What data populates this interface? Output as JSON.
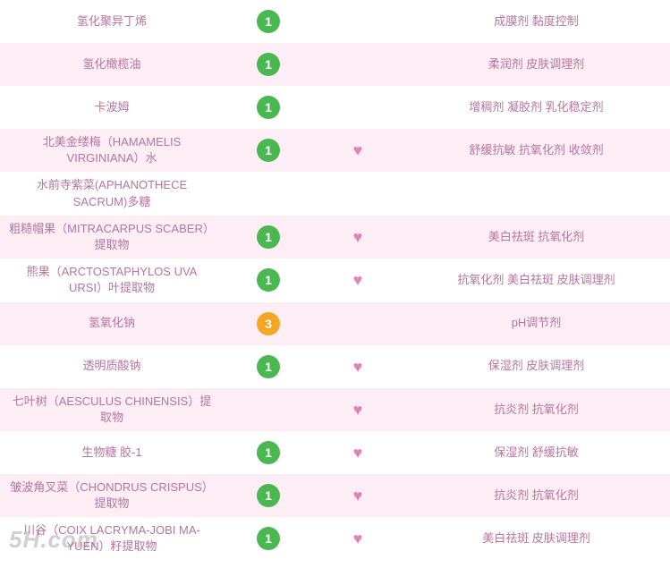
{
  "colors": {
    "row_even_bg": "#fdedf4",
    "row_odd_bg": "#ffffff",
    "text_color": "#b875a0",
    "badge_green": "#4bb750",
    "badge_orange": "#f5a623",
    "heart_color": "#e77fb2",
    "watermark_color": "rgba(120,120,120,0.35)"
  },
  "watermark": "5H.com",
  "rows": [
    {
      "name": "氢化聚异丁烯",
      "badge": "1",
      "badge_color": "#4bb750",
      "heart": false,
      "func": "成膜剂 黏度控制"
    },
    {
      "name": "氢化橄榄油",
      "badge": "1",
      "badge_color": "#4bb750",
      "heart": false,
      "func": "柔润剂 皮肤调理剂"
    },
    {
      "name": "卡波姆",
      "badge": "1",
      "badge_color": "#4bb750",
      "heart": false,
      "func": "增稠剂 凝胶剂 乳化稳定剂"
    },
    {
      "name": "北美金缕梅（HAMAMELIS VIRGINIANA）水",
      "badge": "1",
      "badge_color": "#4bb750",
      "heart": true,
      "func": "舒缓抗敏 抗氧化剂 收敛剂"
    },
    {
      "name": "水前寺紫菜(APHANOTHECE SACRUM)多糖",
      "badge": "",
      "badge_color": "",
      "heart": false,
      "func": ""
    },
    {
      "name": "粗糙帽果（MITRACARPUS SCABER）提取物",
      "badge": "1",
      "badge_color": "#4bb750",
      "heart": true,
      "func": "美白祛斑 抗氧化剂"
    },
    {
      "name": "熊果（ARCTOSTAPHYLOS UVA URSI）叶提取物",
      "badge": "1",
      "badge_color": "#4bb750",
      "heart": true,
      "func": "抗氧化剂 美白祛斑 皮肤调理剂"
    },
    {
      "name": "氢氧化钠",
      "badge": "3",
      "badge_color": "#f5a623",
      "heart": false,
      "func": "pH调节剂"
    },
    {
      "name": "透明质酸钠",
      "badge": "1",
      "badge_color": "#4bb750",
      "heart": true,
      "func": "保湿剂 皮肤调理剂"
    },
    {
      "name": "七叶树（AESCULUS CHINENSIS）提取物",
      "badge": "",
      "badge_color": "",
      "heart": true,
      "func": "抗炎剂 抗氧化剂"
    },
    {
      "name": "生物糖 胶-1",
      "badge": "1",
      "badge_color": "#4bb750",
      "heart": true,
      "func": "保湿剂 舒缓抗敏"
    },
    {
      "name": "皱波角叉菜（CHONDRUS CRISPUS）提取物",
      "badge": "1",
      "badge_color": "#4bb750",
      "heart": true,
      "func": "抗炎剂 抗氧化剂"
    },
    {
      "name": "川谷（COIX LACRYMA-JOBI MA-YUEN）籽提取物",
      "badge": "1",
      "badge_color": "#4bb750",
      "heart": true,
      "func": "美白祛斑 皮肤调理剂"
    }
  ]
}
